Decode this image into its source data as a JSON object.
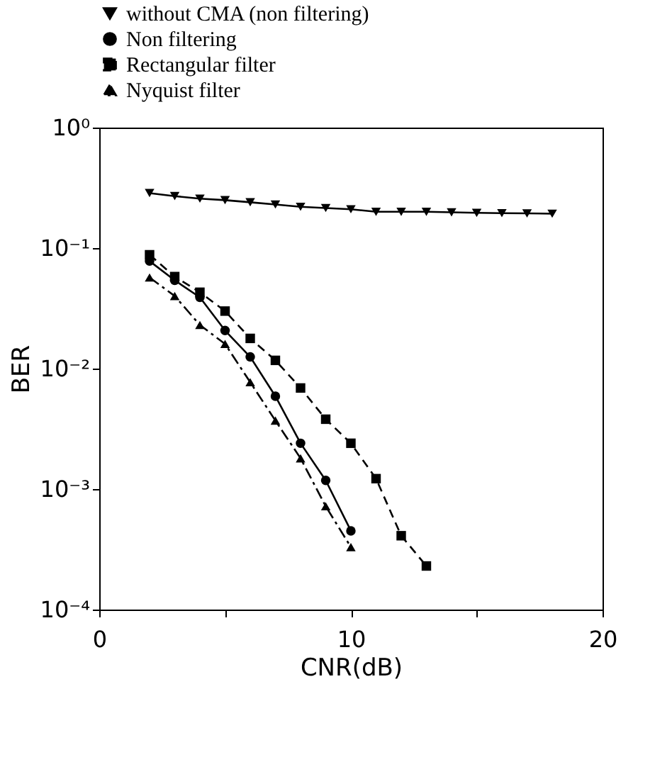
{
  "chart_data": {
    "type": "line",
    "xlabel": "CNR(dB)",
    "ylabel": "BER",
    "log": "y",
    "grid": false,
    "legend": "top",
    "xlim": [
      0,
      20
    ],
    "xticks": [
      0,
      {
        "value": 5,
        "label": null
      },
      10,
      {
        "value": 15,
        "label": null
      },
      20
    ],
    "ylim": [
      0.0001,
      1
    ],
    "yticks": [
      {
        "value": 0.0001,
        "label": "10⁻⁴"
      },
      {
        "value": 0.001,
        "label": "10⁻³"
      },
      {
        "value": 0.01,
        "label": "10⁻²"
      },
      {
        "value": 0.1,
        "label": "10⁻¹"
      },
      {
        "value": 1,
        "label": "10⁰"
      }
    ],
    "series": [
      {
        "name": "without CMA (non filtering)",
        "color": "#000000",
        "marker": "triangle-down",
        "line_style": "solid",
        "x": [
          2,
          3,
          4,
          5,
          6,
          7,
          8,
          9,
          10,
          11,
          12,
          13,
          14,
          15,
          16,
          17,
          18
        ],
        "values": [
          0.286,
          0.27,
          0.257,
          0.25,
          0.24,
          0.23,
          0.22,
          0.215,
          0.21,
          0.2,
          0.2,
          0.2,
          0.198,
          0.196,
          0.195,
          0.194,
          0.193
        ]
      },
      {
        "name": "Non filtering",
        "color": "#000000",
        "marker": "circle",
        "line_style": "solid",
        "x": [
          2,
          3,
          4,
          5,
          6,
          7,
          8,
          9,
          10
        ],
        "values": [
          0.078,
          0.054,
          0.039,
          0.0207,
          0.0125,
          0.0059,
          0.0024,
          0.00118,
          0.00045
        ]
      },
      {
        "name": "Rectangular filter",
        "color": "#000000",
        "marker": "square",
        "line_style": "dashed",
        "x": [
          2,
          3,
          4,
          5,
          6,
          7,
          8,
          9,
          10,
          11,
          12,
          13
        ],
        "values": [
          0.088,
          0.058,
          0.043,
          0.03,
          0.0178,
          0.0117,
          0.0069,
          0.0038,
          0.0024,
          0.00122,
          0.00041,
          0.00023
        ]
      },
      {
        "name": "Nyquist filter",
        "color": "#000000",
        "marker": "triangle",
        "line_style": "dashdot",
        "x": [
          2,
          3,
          4,
          5,
          6,
          7,
          8,
          9,
          10
        ],
        "values": [
          0.057,
          0.04,
          0.023,
          0.016,
          0.0077,
          0.0037,
          0.0018,
          0.00072,
          0.00033
        ]
      }
    ]
  }
}
